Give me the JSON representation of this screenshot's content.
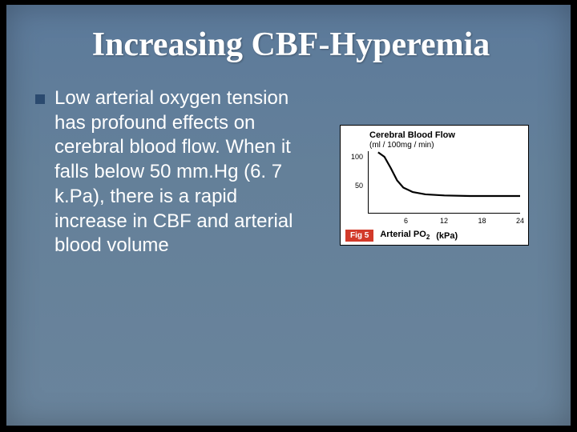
{
  "slide": {
    "title": "Increasing CBF-Hyperemia",
    "bullet_text": "Low arterial oxygen tension has profound effects on cerebral blood flow. When it falls below 50 mm.Hg (6. 7 k.Pa), there is a rapid increase in CBF and arterial blood volume",
    "background_color": "#648099",
    "bullet_color": "#2b4a6f",
    "text_color": "#ffffff",
    "title_fontsize": 42,
    "body_fontsize": 24
  },
  "chart": {
    "type": "line",
    "title": "Cerebral Blood Flow",
    "y_unit": "(ml / 100mg / min)",
    "x_label": "Arterial PO",
    "x_sub": "2",
    "x_unit": "(kPa)",
    "fig_label": "Fig 5",
    "fig_badge_color": "#d23a2a",
    "line_color": "#000000",
    "background_color": "#ffffff",
    "xlim": [
      0,
      24
    ],
    "ylim": [
      0,
      110
    ],
    "x_ticks": [
      6,
      12,
      18,
      24
    ],
    "y_ticks": [
      50,
      100
    ],
    "line_points": [
      {
        "x": 1.5,
        "y": 108
      },
      {
        "x": 2.5,
        "y": 100
      },
      {
        "x": 3.5,
        "y": 80
      },
      {
        "x": 4.5,
        "y": 58
      },
      {
        "x": 5.5,
        "y": 45
      },
      {
        "x": 7.0,
        "y": 37
      },
      {
        "x": 9.0,
        "y": 33
      },
      {
        "x": 12.0,
        "y": 31
      },
      {
        "x": 16.0,
        "y": 30
      },
      {
        "x": 20.0,
        "y": 30
      },
      {
        "x": 24.0,
        "y": 30
      }
    ],
    "line_width": 2.2,
    "title_fontsize": 11,
    "tick_fontsize": 9
  }
}
